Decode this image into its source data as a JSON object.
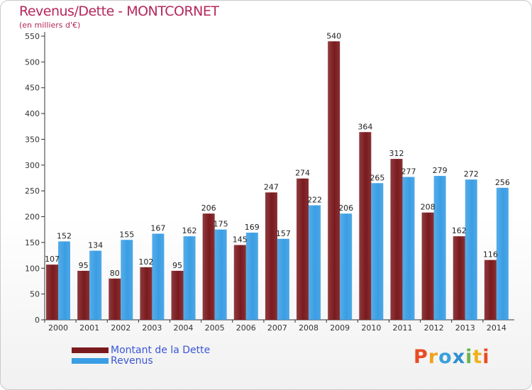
{
  "chart_data": {
    "type": "bar",
    "title": "Revenus/Dette - MONTCORNET",
    "subtitle": "(en milliers d'€)",
    "categories": [
      "2000",
      "2001",
      "2002",
      "2003",
      "2004",
      "2005",
      "2006",
      "2007",
      "2008",
      "2009",
      "2010",
      "2011",
      "2012",
      "2013",
      "2014"
    ],
    "series": [
      {
        "name": "Montant de la Dette",
        "color": "#7a1a1e",
        "values": [
          107,
          95,
          80,
          102,
          95,
          206,
          145,
          247,
          274,
          540,
          364,
          312,
          208,
          162,
          116
        ]
      },
      {
        "name": "Revenus",
        "color": "#3a9ee4",
        "values": [
          152,
          134,
          155,
          167,
          162,
          175,
          169,
          157,
          222,
          206,
          265,
          277,
          279,
          272,
          256
        ]
      }
    ],
    "ylim": [
      0,
      550
    ],
    "yticks": [
      0,
      50,
      100,
      150,
      200,
      250,
      300,
      350,
      400,
      450,
      500,
      550
    ],
    "grid": false,
    "legend_position": "bottom-left"
  },
  "branding": {
    "logo_letters": [
      "P",
      "r",
      "o",
      "x",
      "i",
      "t",
      "i"
    ],
    "logo_colors": [
      "#e84b24",
      "#f2a11c",
      "#3aa1d8",
      "#2f8fd0",
      "#6ab54a",
      "#f0b21c",
      "#e84b24"
    ]
  }
}
